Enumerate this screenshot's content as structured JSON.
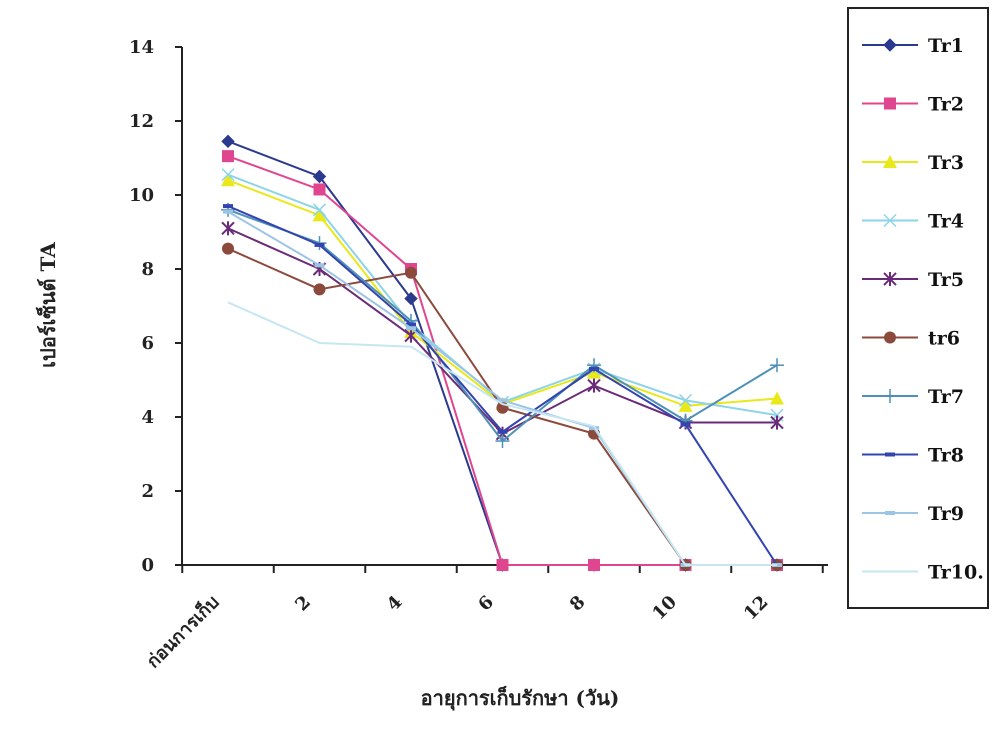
{
  "chart_data": {
    "type": "line",
    "title": "",
    "xlabel": "อายุการเก็บรักษา (วัน)",
    "ylabel": "เปอร์เซ็นต์ TA",
    "x_tick_labels": [
      "ก่อนการเก็บ",
      "2",
      "4",
      "6",
      "8",
      "10",
      "12"
    ],
    "x": [
      0,
      2,
      4,
      6,
      8,
      10,
      12
    ],
    "yticks": [
      0,
      2,
      4,
      6,
      8,
      10,
      12,
      14
    ],
    "ylim": [
      0,
      14
    ],
    "grid": false,
    "legend_position": "right",
    "series": [
      {
        "name": "Tr1",
        "color": "#2b3a8f",
        "marker": "diamond",
        "values": [
          11.45,
          10.5,
          7.2,
          0,
          0,
          0,
          0
        ]
      },
      {
        "name": "Tr2",
        "color": "#e0458f",
        "marker": "square",
        "values": [
          11.05,
          10.15,
          8.0,
          0,
          0,
          0,
          0
        ]
      },
      {
        "name": "Tr3",
        "color": "#e8e81a",
        "marker": "triangle",
        "values": [
          10.4,
          9.45,
          6.3,
          4.35,
          5.2,
          4.3,
          4.5
        ]
      },
      {
        "name": "Tr4",
        "color": "#8ed4e8",
        "marker": "x",
        "values": [
          10.55,
          9.6,
          6.5,
          4.4,
          5.3,
          4.45,
          4.05
        ]
      },
      {
        "name": "Tr5",
        "color": "#6a2c78",
        "marker": "star",
        "values": [
          9.1,
          8.0,
          6.2,
          3.55,
          4.85,
          3.85,
          3.85
        ]
      },
      {
        "name": "tr6",
        "color": "#8b4a3c",
        "marker": "circle",
        "values": [
          8.55,
          7.45,
          7.9,
          4.25,
          3.55,
          0,
          0
        ]
      },
      {
        "name": "Tr7",
        "color": "#4d90b8",
        "marker": "plus",
        "values": [
          9.6,
          8.7,
          6.6,
          3.35,
          5.4,
          3.9,
          5.4
        ]
      },
      {
        "name": "Tr8",
        "color": "#3344b0",
        "marker": "dash",
        "values": [
          9.7,
          8.65,
          6.5,
          3.6,
          5.3,
          3.8,
          0
        ]
      },
      {
        "name": "Tr9",
        "color": "#9cc4e4",
        "marker": "dash",
        "values": [
          9.55,
          8.1,
          6.4,
          4.45,
          3.7,
          0,
          0
        ]
      },
      {
        "name": "Tr10.",
        "color": "#c6e6f2",
        "marker": "none",
        "values": [
          7.1,
          6.0,
          5.9,
          4.35,
          3.75,
          0,
          0
        ]
      }
    ]
  }
}
